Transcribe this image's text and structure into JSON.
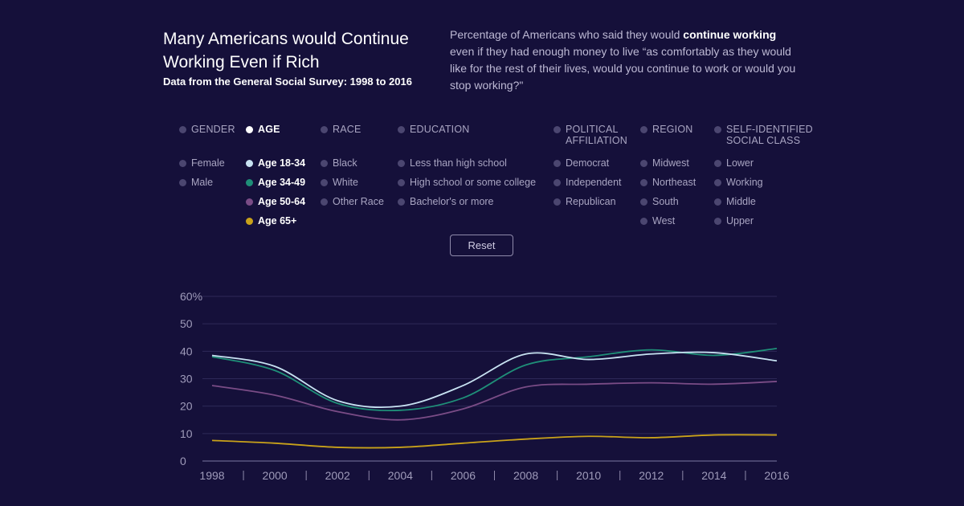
{
  "header": {
    "title": "Many Americans would Continue Working Even if Rich",
    "subtitle": "Data from the General Social Survey: 1998 to 2016",
    "desc_before": "Percentage of Americans who said they would ",
    "desc_bold": "continue working",
    "desc_after": " even if they had enough money to live “as comfortably as they would like for the rest of their lives, would you continue to work or would you stop working?\""
  },
  "filters": {
    "gender": {
      "label": "GENDER",
      "items": [
        "Female",
        "Male"
      ]
    },
    "age": {
      "label": "AGE",
      "items": [
        "Age 18-34",
        "Age 34-49",
        "Age 50-64",
        "Age 65+"
      ]
    },
    "race": {
      "label": "RACE",
      "items": [
        "Black",
        "White",
        "Other Race"
      ]
    },
    "education": {
      "label": "EDUCATION",
      "items": [
        "Less than high school",
        "High school or some college",
        "Bachelor's or more"
      ]
    },
    "political": {
      "label_line1": "POLITICAL",
      "label_line2": "AFFILIATION",
      "items": [
        "Democrat",
        "Independent",
        "Republican"
      ]
    },
    "region": {
      "label": "REGION",
      "items": [
        "Midwest",
        "Northeast",
        "South",
        "West"
      ]
    },
    "social_class": {
      "label_line1": "SELF-IDENTIFIED",
      "label_line2": "SOCIAL CLASS",
      "items": [
        "Lower",
        "Working",
        "Middle",
        "Upper"
      ]
    },
    "active_category": "AGE",
    "active_colors": {
      "Age 18-34": "#c8e3f2",
      "Age 34-49": "#1f8f78",
      "Age 50-64": "#7a4c86",
      "Age 65+": "#c9a21a"
    }
  },
  "reset_label": "Reset",
  "chart_data": {
    "type": "line",
    "x": [
      1998,
      2000,
      2002,
      2004,
      2006,
      2008,
      2010,
      2012,
      2014,
      2016
    ],
    "x_tick_labels": [
      "1998",
      "2000",
      "2002",
      "2004",
      "2006",
      "2008",
      "2010",
      "2012",
      "2014",
      "2016"
    ],
    "y_tick_labels": [
      "60%",
      "50",
      "40",
      "30",
      "20",
      "10",
      "0"
    ],
    "y_ticks": [
      60,
      50,
      40,
      30,
      20,
      10,
      0
    ],
    "ylim": [
      0,
      60
    ],
    "grid": true,
    "series": [
      {
        "name": "Age 18-34",
        "color": "#c8e3f2",
        "values": [
          38.5,
          34.5,
          22,
          20,
          27.5,
          39,
          37,
          39,
          39.5,
          36.5
        ]
      },
      {
        "name": "Age 34-49",
        "color": "#1f8f78",
        "values": [
          38,
          33,
          21,
          18.5,
          23,
          35,
          38,
          40.5,
          38.5,
          41
        ]
      },
      {
        "name": "Age 50-64",
        "color": "#7a4c86",
        "values": [
          27.5,
          24,
          18,
          15,
          19,
          27,
          28,
          28.5,
          28,
          29
        ]
      },
      {
        "name": "Age 65+",
        "color": "#c9a21a",
        "values": [
          7.5,
          6.5,
          5,
          5,
          6.5,
          8,
          9,
          8.5,
          9.5,
          9.5
        ]
      }
    ]
  }
}
